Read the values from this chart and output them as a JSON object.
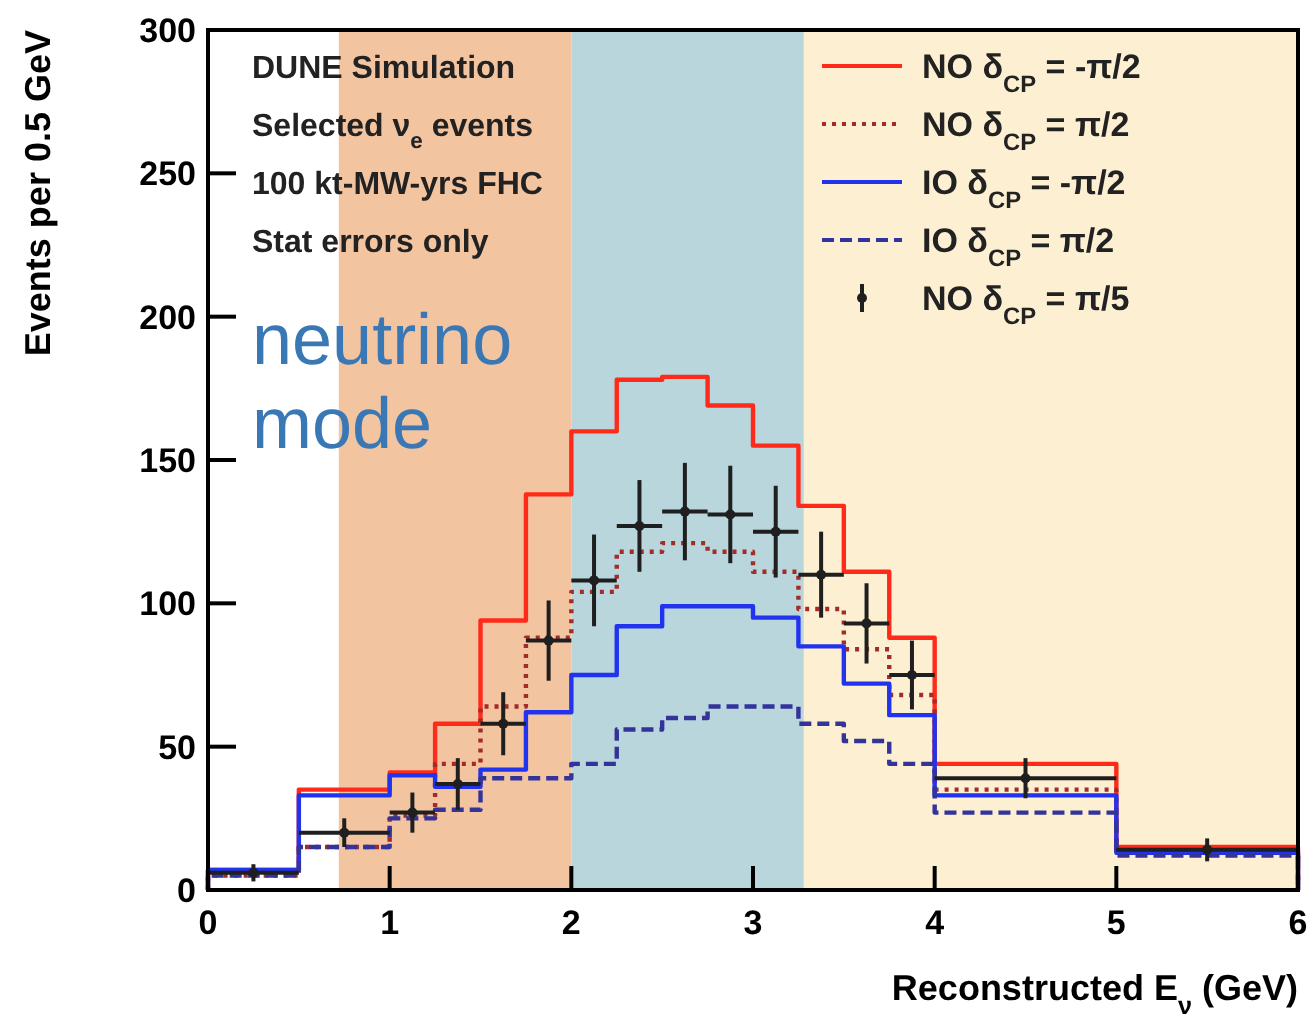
{
  "chart_data": {
    "type": "histogram",
    "xlabel": "Reconstructed E$_{ν}$ (GeV)",
    "ylabel": "Events per 0.5 GeV",
    "bins": [
      0,
      0.5,
      1,
      1.25,
      1.5,
      1.75,
      2,
      2.25,
      2.5,
      2.75,
      3,
      3.25,
      3.5,
      3.75,
      4,
      5,
      6
    ],
    "xlim": [
      0,
      6
    ],
    "ylim": [
      0,
      300
    ],
    "xticks": [
      0,
      1,
      2,
      3,
      4,
      5,
      6
    ],
    "yticks": [
      0,
      50,
      100,
      150,
      200,
      250,
      300
    ],
    "legend": "top right",
    "grid": false,
    "series": [
      {
        "name": "NO  δ$_{CP}$ = -π/2",
        "color": "#ff2a1a",
        "line_style": "solid",
        "values": [
          7,
          35,
          41,
          58,
          94,
          138,
          160,
          178,
          179,
          169,
          155,
          134,
          111,
          88,
          44,
          15
        ]
      },
      {
        "name": "NO  δ$_{CP}$ =  π/2",
        "color": "#a52a2a",
        "line_style": "dotted",
        "values": [
          5,
          15,
          26,
          44,
          64,
          88,
          104,
          118,
          121,
          118,
          111,
          98,
          84,
          68,
          35,
          13
        ]
      },
      {
        "name": "IO  δ$_{CP}$ = -π/2",
        "color": "#2233ee",
        "line_style": "solid",
        "values": [
          7,
          33,
          40,
          36,
          42,
          62,
          75,
          92,
          99,
          99,
          95,
          85,
          72,
          61,
          33,
          13
        ]
      },
      {
        "name": "IO  δ$_{CP}$ =  π/2",
        "color": "#333399",
        "line_style": "dashed",
        "values": [
          5,
          15,
          25,
          28,
          39,
          39,
          44,
          56,
          60,
          64,
          64,
          58,
          52,
          44,
          27,
          12
        ]
      },
      {
        "name": "NO  δ$_{CP}$ =  π/5",
        "type": "scatter",
        "color": "#1f1f1f",
        "marker": "circle",
        "x": [
          0.25,
          0.75,
          1.125,
          1.375,
          1.625,
          1.875,
          2.125,
          2.375,
          2.625,
          2.875,
          3.125,
          3.375,
          3.625,
          3.875,
          4.5,
          5.5
        ],
        "values": [
          6,
          20,
          27,
          37,
          58,
          87,
          108,
          127,
          132,
          131,
          125,
          110,
          93,
          75,
          39,
          14
        ],
        "errors": [
          3,
          5,
          7,
          9,
          11,
          14,
          16,
          16,
          17,
          17,
          16,
          15,
          14,
          12,
          7,
          4
        ],
        "xerrors": [
          0.25,
          0.25,
          0.125,
          0.125,
          0.125,
          0.125,
          0.125,
          0.125,
          0.125,
          0.125,
          0.125,
          0.125,
          0.125,
          0.125,
          0.5,
          0.5
        ]
      }
    ],
    "bands": [
      {
        "axis": "x",
        "from": 0.72,
        "to": 2,
        "color": "#f3c4a0"
      },
      {
        "axis": "x",
        "from": 2,
        "to": 3.28,
        "color": "#b9d6dd"
      },
      {
        "axis": "x",
        "from": 3.28,
        "to": 6,
        "color": "#fdf0d2"
      }
    ],
    "annotations": [
      "DUNE Simulation",
      "Selected ν$_{e}$ events",
      "100 kt-MW-yrs FHC",
      "Stat errors only",
      "neutrino mode"
    ]
  }
}
